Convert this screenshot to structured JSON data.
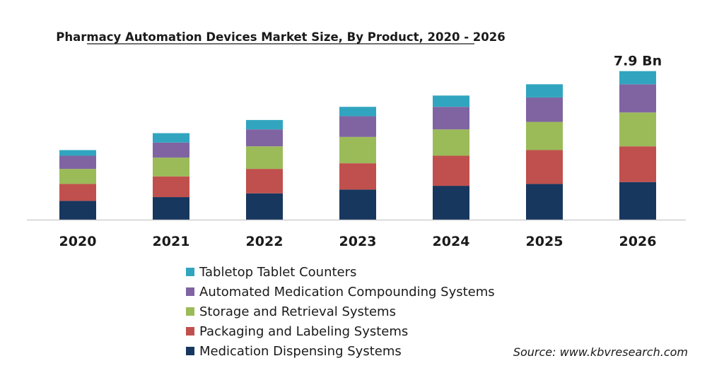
{
  "chart_data": {
    "type": "bar",
    "stacked": true,
    "title": "Pharmacy Automation Devices Market Size, By Product, 2020 - 2026",
    "categories": [
      "2020",
      "2021",
      "2022",
      "2023",
      "2024",
      "2025",
      "2026"
    ],
    "series": [
      {
        "name": "Medication Dispensing Systems",
        "color": "#17375e",
        "values": [
          1.0,
          1.2,
          1.4,
          1.6,
          1.8,
          1.9,
          2.0
        ]
      },
      {
        "name": "Packaging and Labeling Systems",
        "color": "#c0504d",
        "values": [
          0.9,
          1.1,
          1.3,
          1.4,
          1.6,
          1.8,
          1.9
        ]
      },
      {
        "name": "Storage and Retrieval Systems",
        "color": "#9bbb59",
        "values": [
          0.8,
          1.0,
          1.2,
          1.4,
          1.4,
          1.5,
          1.8
        ]
      },
      {
        "name": "Automated Medication Compounding Systems",
        "color": "#8064a2",
        "values": [
          0.7,
          0.8,
          0.9,
          1.1,
          1.2,
          1.3,
          1.5
        ]
      },
      {
        "name": "Tabletop Tablet Counters",
        "color": "#31a5bf",
        "values": [
          0.3,
          0.5,
          0.5,
          0.5,
          0.6,
          0.7,
          0.7
        ]
      }
    ],
    "legend_order": [
      4,
      3,
      2,
      1,
      0
    ],
    "data_labels": [
      {
        "category": "2026",
        "text": "7.9 Bn"
      }
    ],
    "ylim": [
      0,
      8
    ],
    "grid": false,
    "legend_position": "bottom-left",
    "source": "Source: www.kbvresearch.com"
  }
}
